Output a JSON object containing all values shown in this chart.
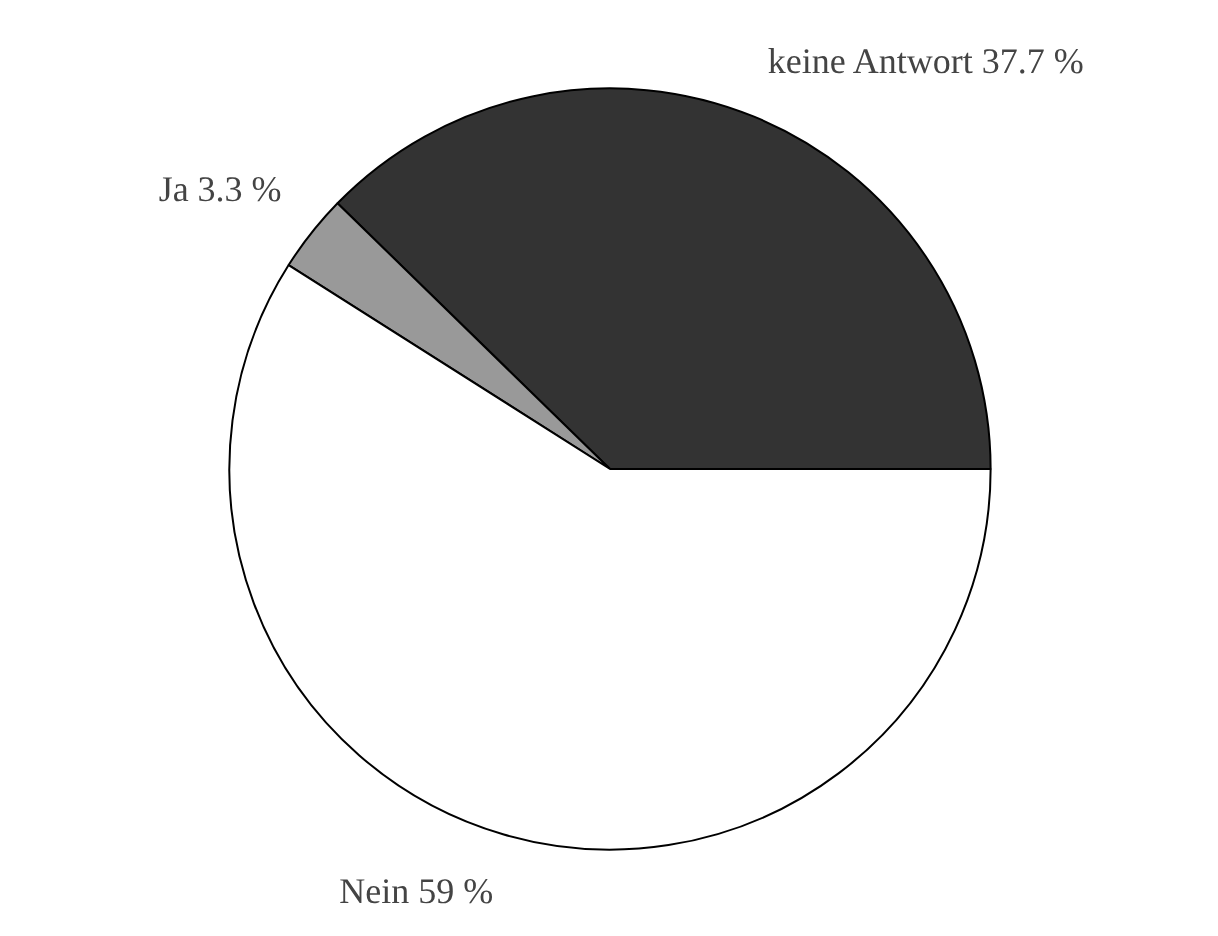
{
  "chart_data": {
    "type": "pie",
    "categories": [
      "keine Antwort",
      "Ja",
      "Nein"
    ],
    "values": [
      37.7,
      3.3,
      59
    ],
    "value_labels": [
      "37.7 %",
      "3.3 %",
      "59 %"
    ],
    "colors": [
      "#333333",
      "#999999",
      "#ffffff"
    ],
    "legend": false
  }
}
